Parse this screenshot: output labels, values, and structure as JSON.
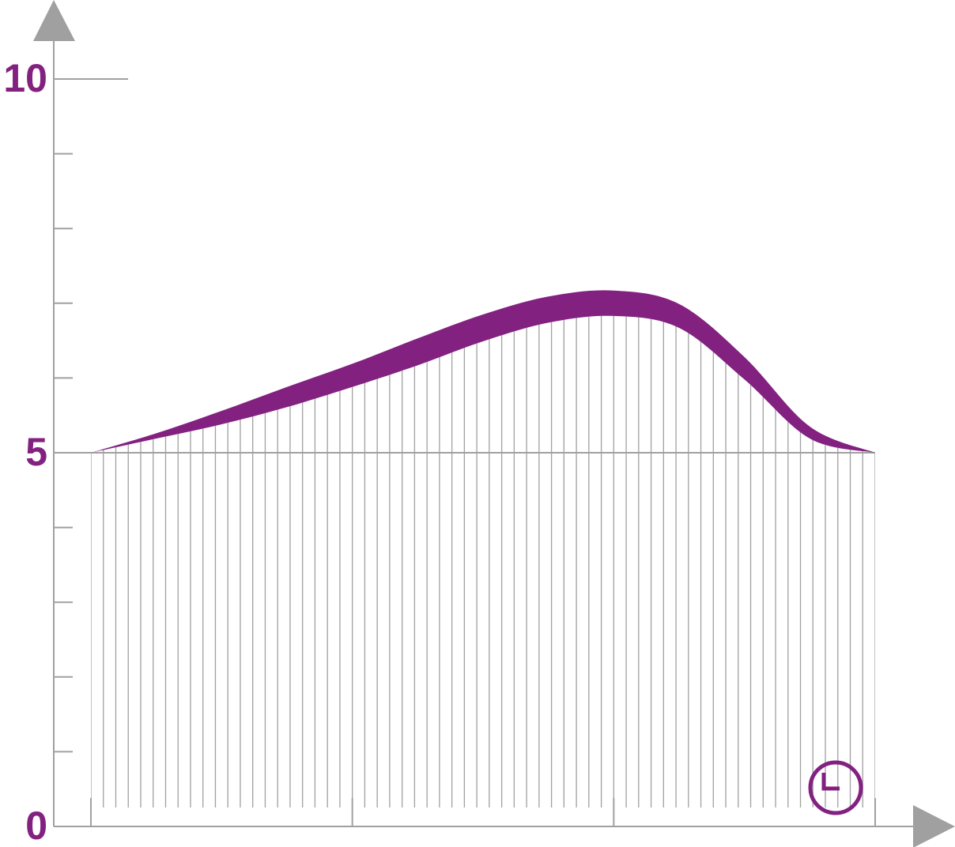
{
  "chart_data": {
    "type": "band",
    "x": [
      0,
      0.25,
      0.5,
      0.75,
      1,
      1.25,
      1.5,
      1.75,
      2,
      2.25,
      2.5,
      2.75,
      3
    ],
    "upper": [
      5.0,
      5.26,
      5.56,
      5.88,
      6.19,
      6.53,
      6.85,
      7.09,
      7.17,
      6.99,
      6.28,
      5.35,
      5.0
    ],
    "lower": [
      5.0,
      5.19,
      5.38,
      5.61,
      5.88,
      6.17,
      6.49,
      6.74,
      6.83,
      6.67,
      5.98,
      5.19,
      5.0
    ],
    "color": "#832181",
    "xlim": [
      0,
      3
    ],
    "xticks": [
      0,
      1,
      2,
      3
    ],
    "ylim": [
      0,
      10
    ],
    "yticks": [
      0,
      5,
      10
    ],
    "minor_yticks": [
      1,
      2,
      3,
      4,
      6,
      7,
      8,
      9
    ],
    "hline": 5
  }
}
